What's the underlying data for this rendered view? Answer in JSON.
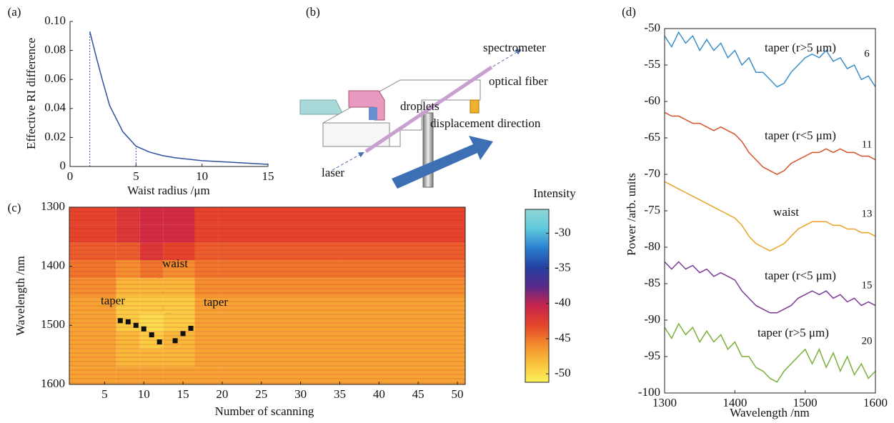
{
  "chart_data": [
    {
      "type": "line",
      "panel": "(a)",
      "x_label": "Waist radius /μm",
      "y_label": "Effective RI difference",
      "x": [
        1.5,
        2,
        2.5,
        3,
        4,
        5,
        6,
        7,
        8,
        10,
        12,
        15
      ],
      "values": [
        0.093,
        0.075,
        0.058,
        0.042,
        0.024,
        0.014,
        0.01,
        0.0075,
        0.006,
        0.004,
        0.003,
        0.0015
      ],
      "color": "#2f4f9f",
      "vlines": [
        1.5,
        5
      ],
      "xlim": [
        0,
        15
      ],
      "ylim": [
        0,
        0.1
      ],
      "xticks": [
        0,
        5,
        10,
        15
      ],
      "yticks": [
        0,
        0.02,
        0.04,
        0.06,
        0.08,
        {
          "value": 0.1,
          "label": "0.10"
        }
      ],
      "box": false
    },
    {
      "type": "heatmap",
      "panel": "(c)",
      "x_label": "Number of scanning",
      "y_label": "Wavelength /nm",
      "colorbar_label": "Intensity",
      "x_edges": [
        0.5,
        6.5,
        9.5,
        12.5,
        16.5,
        19.5,
        35,
        51
      ],
      "y_edges": [
        1300,
        1330,
        1360,
        1390,
        1420,
        1450,
        1480,
        1510,
        1540,
        1570,
        1600
      ],
      "z": [
        [
          -43,
          -42,
          -41,
          -41,
          -43,
          -43,
          -43
        ],
        [
          -43,
          -42,
          -41,
          -41,
          -43,
          -43,
          -43
        ],
        [
          -44,
          -44,
          -42,
          -43,
          -44,
          -44,
          -44
        ],
        [
          -45,
          -46,
          -45,
          -46,
          -45,
          -45,
          -45
        ],
        [
          -46,
          -48,
          -48,
          -48,
          -46,
          -46,
          -46
        ],
        [
          -47,
          -49,
          -49,
          -49,
          -47,
          -47,
          -47
        ],
        [
          -47,
          -49,
          -50,
          -49,
          -47,
          -47,
          -47
        ],
        [
          -47,
          -48,
          -49,
          -48,
          -47,
          -47,
          -47
        ],
        [
          -47,
          -48,
          -48,
          -48,
          -47,
          -47,
          -47
        ],
        [
          -47,
          -47,
          -47,
          -47,
          -47,
          -47,
          -47
        ]
      ],
      "clim": [
        -51.2,
        -26.6
      ],
      "cticks": [
        -30,
        -35,
        -40,
        -45,
        -50
      ],
      "colormap": [
        "#fbf35a",
        "#f9c23c",
        "#f28a2c",
        "#e4452a",
        "#c8234d",
        "#5a2a8a",
        "#2440a0",
        "#2a7fd0",
        "#5fc8dc",
        "#8fd6d6"
      ],
      "points": {
        "x": [
          7,
          8,
          9,
          10,
          11,
          12,
          14,
          15,
          16
        ],
        "y": [
          1492,
          1494,
          1500,
          1506,
          1516,
          1528,
          1526,
          1514,
          1505
        ],
        "color": "#111111"
      },
      "annotations": [
        "taper",
        "waist",
        "taper"
      ],
      "xlim": [
        0.5,
        51
      ],
      "ylim": [
        1300,
        1600
      ],
      "y_reversed": true,
      "xticks": [
        5,
        10,
        15,
        20,
        25,
        30,
        35,
        40,
        45,
        50
      ],
      "yticks": [
        1300,
        1400,
        1500,
        1600
      ],
      "box": true
    },
    {
      "type": "line",
      "panel": "(d)",
      "x_label": "Wavelength /nm",
      "y_label": "Power /arb. units",
      "x": [
        1300,
        1310,
        1320,
        1330,
        1340,
        1350,
        1360,
        1370,
        1380,
        1390,
        1400,
        1410,
        1420,
        1430,
        1440,
        1450,
        1460,
        1470,
        1480,
        1490,
        1500,
        1510,
        1520,
        1530,
        1540,
        1550,
        1560,
        1570,
        1580,
        1590,
        1600
      ],
      "series": [
        {
          "name": "taper (r>5 μm)",
          "label": "6",
          "color": "#3a8fc8",
          "values": [
            -51,
            -52.5,
            -50.5,
            -52,
            -51,
            -53,
            -51.5,
            -53,
            -52,
            -54,
            -53,
            -55,
            -54,
            -56,
            -56,
            -57,
            -58,
            -57.5,
            -56,
            -55,
            -54,
            -53.5,
            -54,
            -53,
            -54.5,
            -54,
            -55.5,
            -55,
            -57,
            -56.5,
            -58
          ]
        },
        {
          "name": "taper (r<5 μm)",
          "label": "11",
          "color": "#d4522a",
          "values": [
            -61.5,
            -62,
            -62,
            -62.5,
            -63,
            -63,
            -63.5,
            -64,
            -63.5,
            -64,
            -64.5,
            -65.5,
            -67,
            -68,
            -69,
            -69.5,
            -70,
            -69.5,
            -68.5,
            -68,
            -67.5,
            -67,
            -67,
            -66.5,
            -67,
            -66.5,
            -67,
            -67,
            -67.5,
            -67.5,
            -68
          ]
        },
        {
          "name": "waist",
          "label": "13",
          "color": "#e8a428",
          "values": [
            -71,
            -71.5,
            -72,
            -72.5,
            -73,
            -73.5,
            -74,
            -74.5,
            -75,
            -75.5,
            -76,
            -77,
            -78.5,
            -79.5,
            -80,
            -80.5,
            -80,
            -79.5,
            -78.5,
            -77.5,
            -77,
            -76.5,
            -76.5,
            -76.5,
            -77,
            -77,
            -77.5,
            -77.5,
            -78,
            -78,
            -78.5
          ]
        },
        {
          "name": "taper (r<5 μm)",
          "label": "15",
          "color": "#7a3a96",
          "values": [
            -82,
            -83,
            -82,
            -83,
            -82.5,
            -83.5,
            -83,
            -84,
            -83.5,
            -84,
            -84.5,
            -86,
            -87,
            -88,
            -88.5,
            -89,
            -89,
            -88.5,
            -88,
            -87,
            -86.5,
            -86,
            -86.5,
            -86,
            -87,
            -86.5,
            -87.5,
            -87,
            -88,
            -87.5,
            -88
          ]
        },
        {
          "name": "taper (r>5 μm)",
          "label": "20",
          "color": "#7ab03a",
          "values": [
            -91,
            -92.5,
            -90.5,
            -92,
            -91,
            -93,
            -91.5,
            -93,
            -92,
            -94,
            -93,
            -95,
            -95,
            -96.5,
            -97,
            -98,
            -98.5,
            -97,
            -96,
            -95,
            -94,
            -96,
            -94,
            -96.5,
            -94.5,
            -97,
            -95,
            -97.5,
            -96,
            -98,
            -97
          ]
        }
      ],
      "xlim": [
        1300,
        1600
      ],
      "ylim": [
        -100,
        -50
      ],
      "xticks": [
        1300,
        1400,
        1500,
        1600
      ],
      "yticks": [
        -50,
        -55,
        -60,
        -65,
        -70,
        -75,
        -80,
        -85,
        -90,
        -95,
        -100
      ],
      "box": true
    }
  ],
  "diagram": {
    "panel": "(b)",
    "labels": [
      "spectrometer",
      "optical fiber",
      "droplets",
      "displacement direction",
      "laser"
    ]
  }
}
